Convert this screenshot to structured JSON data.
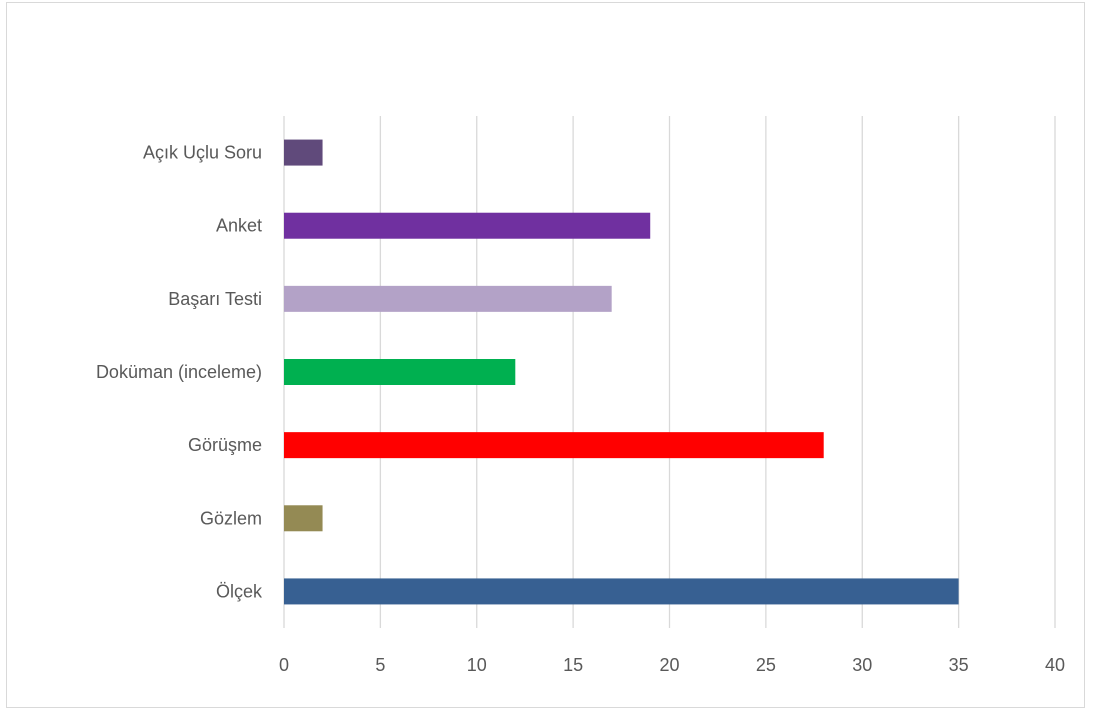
{
  "chart_data": {
    "type": "bar",
    "orientation": "horizontal",
    "categories": [
      "Açık Uçlu Soru",
      "Anket",
      "Başarı Testi",
      "Doküman (inceleme)",
      "Görüşme",
      "Gözlem",
      "Ölçek"
    ],
    "values": [
      2,
      19,
      17,
      12,
      28,
      2,
      35
    ],
    "colors": [
      "#604a7b",
      "#7030a0",
      "#b3a2c7",
      "#00b050",
      "#ff0000",
      "#948a54",
      "#376092"
    ],
    "xlim": [
      0,
      40
    ],
    "xticks": [
      0,
      5,
      10,
      15,
      20,
      25,
      30,
      35,
      40
    ],
    "grid": true,
    "legend": "none"
  }
}
